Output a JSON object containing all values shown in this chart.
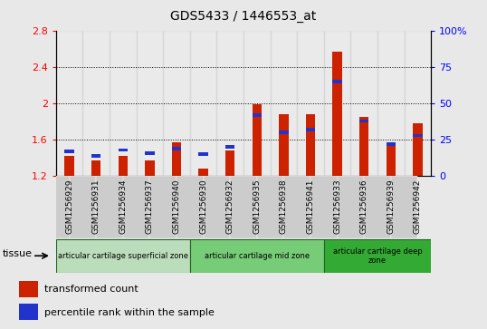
{
  "title": "GDS5433 / 1446553_at",
  "samples": [
    "GSM1256929",
    "GSM1256931",
    "GSM1256934",
    "GSM1256937",
    "GSM1256940",
    "GSM1256930",
    "GSM1256932",
    "GSM1256935",
    "GSM1256938",
    "GSM1256941",
    "GSM1256933",
    "GSM1256936",
    "GSM1256939",
    "GSM1256942"
  ],
  "transformed_count": [
    1.42,
    1.37,
    1.42,
    1.37,
    1.57,
    1.28,
    1.48,
    1.99,
    1.88,
    1.88,
    2.57,
    1.85,
    1.57,
    1.78
  ],
  "percentile_rank": [
    17,
    14,
    18,
    16,
    19,
    15,
    20,
    42,
    30,
    32,
    65,
    38,
    22,
    28
  ],
  "y_min": 1.2,
  "y_max": 2.8,
  "y_ticks": [
    1.2,
    1.6,
    2.0,
    2.4,
    2.8
  ],
  "y2_ticks": [
    0,
    25,
    50,
    75,
    100
  ],
  "bar_color": "#cc2200",
  "percentile_color": "#2233cc",
  "background_color": "#e8e8e8",
  "plot_bg_color": "#ffffff",
  "cell_bg_color": "#cccccc",
  "tissue_zones": [
    {
      "label": "articular cartilage superficial zone",
      "start": 0,
      "end": 4,
      "color": "#bbddbb"
    },
    {
      "label": "articular cartilage mid zone",
      "start": 5,
      "end": 9,
      "color": "#77cc77"
    },
    {
      "label": "articular cartilage deep\nzone",
      "start": 10,
      "end": 13,
      "color": "#33aa33"
    }
  ],
  "legend_items": [
    {
      "label": "transformed count",
      "color": "#cc2200"
    },
    {
      "label": "percentile rank within the sample",
      "color": "#2233cc"
    }
  ],
  "tissue_label": "tissue"
}
